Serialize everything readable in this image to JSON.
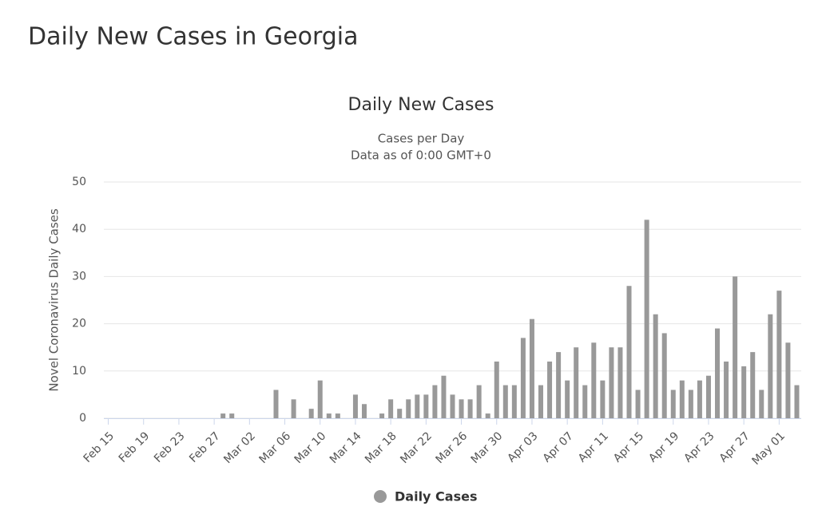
{
  "header": {
    "title": "Daily New Cases in Georgia"
  },
  "chart_data": {
    "type": "bar",
    "title": "Daily New Cases",
    "subtitle": [
      "Cases per Day",
      "Data as of 0:00 GMT+0"
    ],
    "y_label": "Novel Coronavirus Daily Cases",
    "categories": [
      "Feb 15",
      null,
      null,
      null,
      "Feb 19",
      null,
      null,
      null,
      "Feb 23",
      null,
      null,
      null,
      "Feb 27",
      null,
      null,
      null,
      "Mar 02",
      null,
      null,
      null,
      "Mar 06",
      null,
      null,
      null,
      "Mar 10",
      null,
      null,
      null,
      "Mar 14",
      null,
      null,
      null,
      "Mar 18",
      null,
      null,
      null,
      "Mar 22",
      null,
      null,
      null,
      "Mar 26",
      null,
      null,
      null,
      "Mar 30",
      null,
      null,
      null,
      "Apr 03",
      null,
      null,
      null,
      "Apr 07",
      null,
      null,
      null,
      "Apr 11",
      null,
      null,
      null,
      "Apr 15",
      null,
      null,
      null,
      "Apr 19",
      null,
      null,
      null,
      "Apr 23",
      null,
      null,
      null,
      "Apr 27",
      null,
      null,
      null,
      "May 01",
      null,
      null
    ],
    "series": [
      {
        "name": "Daily Cases",
        "color": "#999999",
        "values": [
          0,
          0,
          0,
          0,
          0,
          0,
          0,
          0,
          0,
          0,
          0,
          0,
          0,
          1,
          1,
          0,
          0,
          0,
          0,
          6,
          0,
          4,
          0,
          2,
          8,
          1,
          1,
          0,
          5,
          3,
          0,
          1,
          4,
          2,
          4,
          5,
          5,
          7,
          9,
          5,
          4,
          4,
          7,
          1,
          12,
          7,
          7,
          17,
          21,
          7,
          12,
          14,
          8,
          15,
          7,
          16,
          8,
          15,
          15,
          28,
          6,
          42,
          22,
          18,
          6,
          8,
          6,
          8,
          9,
          19,
          12,
          30,
          11,
          14,
          6,
          22,
          27,
          16,
          7
        ]
      }
    ],
    "ylim": [
      0,
      50
    ],
    "yticks": [
      0,
      10,
      20,
      30,
      40,
      50
    ],
    "grid": true,
    "legend": "bottom"
  }
}
